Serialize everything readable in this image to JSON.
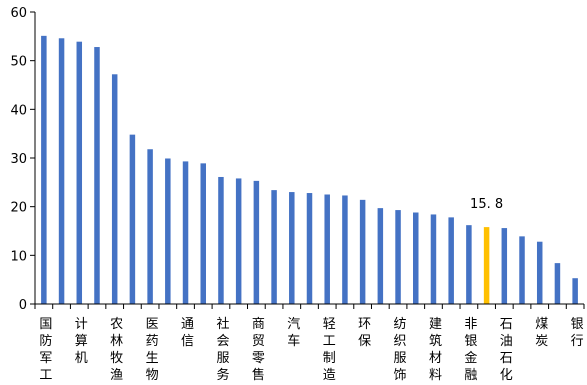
{
  "chart_data": {
    "type": "bar",
    "title": "",
    "xlabel": "",
    "ylabel": "",
    "ylim": [
      0,
      60
    ],
    "yticks": [
      0,
      10,
      20,
      30,
      40,
      50,
      60
    ],
    "grid": false,
    "colors": {
      "default": "#4472C4",
      "highlight": "#FFC000",
      "axis": "#000000"
    },
    "categories": [
      "国防军工",
      "",
      "计算机",
      "",
      "农林牧渔",
      "",
      "医药生物",
      "",
      "通信",
      "",
      "社会服务",
      "",
      "商贸零售",
      "",
      "汽车",
      "",
      "轻工制造",
      "",
      "环保",
      "",
      "纺织服饰",
      "",
      "建筑材料",
      "",
      "非银金融",
      "",
      "石油石化",
      "",
      "煤炭",
      "",
      "银行"
    ],
    "values": [
      55.1,
      54.6,
      53.9,
      52.8,
      47.2,
      34.8,
      31.8,
      29.9,
      29.3,
      28.9,
      26.1,
      25.8,
      25.3,
      23.4,
      23.0,
      22.8,
      22.5,
      22.3,
      21.4,
      19.7,
      19.3,
      18.8,
      18.4,
      17.8,
      16.2,
      15.8,
      15.6,
      13.9,
      12.8,
      8.4,
      5.3
    ],
    "highlight_index": 25,
    "data_labels": [
      {
        "index": 25,
        "text": "15. 8"
      }
    ]
  }
}
